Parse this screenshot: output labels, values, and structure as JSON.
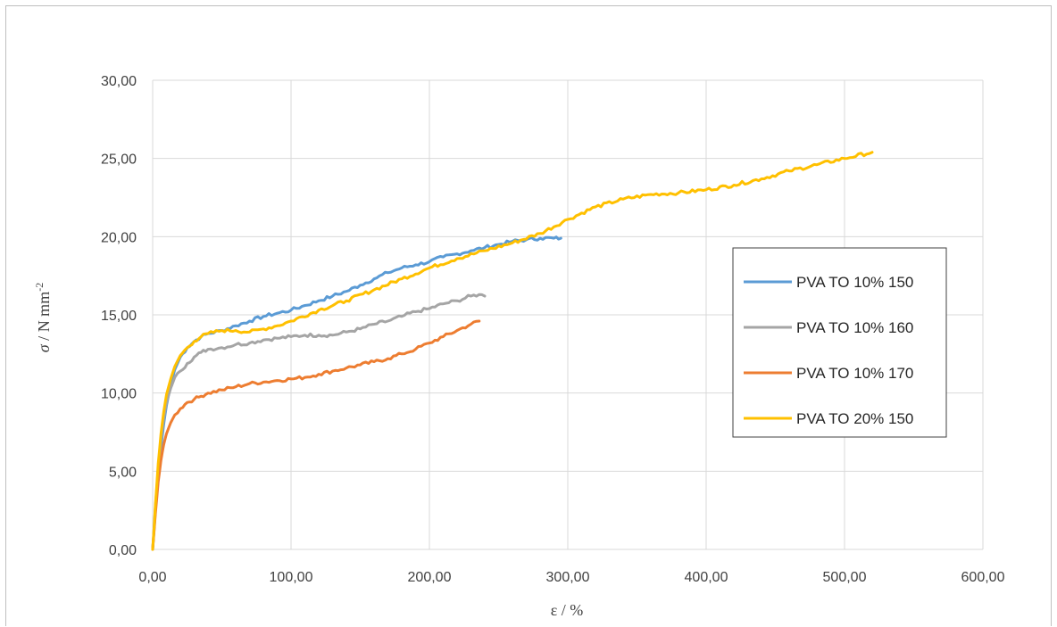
{
  "chart_data": {
    "type": "line",
    "title": "",
    "xlabel": "ε / %",
    "ylabel": "σ / N mm-2",
    "ylabel_parts": {
      "sigma": "σ",
      "unit": " / N mm",
      "exp": "-2"
    },
    "xlim": [
      0,
      600
    ],
    "ylim": [
      0,
      30
    ],
    "x_ticks": [
      0,
      100,
      200,
      300,
      400,
      500,
      600
    ],
    "y_ticks": [
      0,
      5,
      10,
      15,
      20,
      25,
      30
    ],
    "x_tick_labels": [
      "0,00",
      "100,00",
      "200,00",
      "300,00",
      "400,00",
      "500,00",
      "600,00"
    ],
    "y_tick_labels": [
      "0,00",
      "5,00",
      "10,00",
      "15,00",
      "20,00",
      "25,00",
      "30,00"
    ],
    "grid": true,
    "legend_position": "right",
    "series": [
      {
        "name": "PVA TO 10% 150",
        "color": "#5b9bd5",
        "x": [
          0,
          2,
          4,
          6,
          8,
          10,
          13,
          16,
          20,
          25,
          30,
          35,
          40,
          50,
          60,
          70,
          80,
          90,
          100,
          110,
          120,
          130,
          140,
          150,
          160,
          170,
          180,
          190,
          200,
          210,
          220,
          230,
          240,
          250,
          260,
          270,
          280,
          290,
          295
        ],
        "y": [
          0,
          2.5,
          4.8,
          6.5,
          8.0,
          9.2,
          10.5,
          11.5,
          12.3,
          12.9,
          13.3,
          13.6,
          13.8,
          14.0,
          14.3,
          14.6,
          14.9,
          15.1,
          15.3,
          15.6,
          15.9,
          16.2,
          16.5,
          16.9,
          17.3,
          17.7,
          18.0,
          18.2,
          18.4,
          18.7,
          18.9,
          19.1,
          19.3,
          19.5,
          19.7,
          19.8,
          19.9,
          19.9,
          19.9
        ]
      },
      {
        "name": "PVA TO 10% 160",
        "color": "#a5a5a5",
        "x": [
          0,
          2,
          4,
          6,
          8,
          10,
          13,
          16,
          20,
          25,
          30,
          35,
          40,
          50,
          60,
          70,
          80,
          90,
          100,
          110,
          120,
          130,
          140,
          150,
          160,
          170,
          180,
          190,
          200,
          210,
          220,
          230,
          236,
          240
        ],
        "y": [
          0,
          2.8,
          5.2,
          7.0,
          8.4,
          9.4,
          10.3,
          11.0,
          11.4,
          11.9,
          12.3,
          12.6,
          12.8,
          12.9,
          13.1,
          13.2,
          13.4,
          13.5,
          13.6,
          13.7,
          13.7,
          13.7,
          13.9,
          14.1,
          14.4,
          14.6,
          14.9,
          15.2,
          15.4,
          15.7,
          15.9,
          16.2,
          16.3,
          16.2
        ]
      },
      {
        "name": "PVA TO 10% 170",
        "color": "#ed7d31",
        "x": [
          0,
          2,
          4,
          6,
          8,
          10,
          13,
          16,
          20,
          25,
          30,
          35,
          40,
          50,
          60,
          70,
          80,
          90,
          100,
          110,
          120,
          130,
          140,
          150,
          160,
          170,
          180,
          190,
          200,
          210,
          220,
          230,
          236
        ],
        "y": [
          0,
          2.3,
          4.3,
          5.7,
          6.7,
          7.4,
          8.1,
          8.6,
          9.0,
          9.4,
          9.6,
          9.8,
          10.0,
          10.2,
          10.4,
          10.6,
          10.7,
          10.8,
          10.9,
          11.0,
          11.2,
          11.4,
          11.6,
          11.8,
          12.0,
          12.2,
          12.5,
          12.8,
          13.2,
          13.6,
          14.0,
          14.4,
          14.6
        ]
      },
      {
        "name": "PVA TO 20% 150",
        "color": "#ffc000",
        "x": [
          0,
          2,
          4,
          6,
          8,
          10,
          13,
          16,
          20,
          25,
          30,
          35,
          40,
          50,
          60,
          70,
          80,
          90,
          100,
          120,
          140,
          160,
          180,
          200,
          220,
          240,
          260,
          280,
          300,
          320,
          340,
          360,
          380,
          400,
          420,
          440,
          460,
          480,
          500,
          520
        ],
        "y": [
          0,
          2.9,
          5.5,
          7.4,
          8.8,
          9.9,
          10.9,
          11.7,
          12.4,
          12.9,
          13.3,
          13.6,
          13.8,
          14.0,
          14.0,
          13.9,
          14.1,
          14.3,
          14.6,
          15.3,
          15.9,
          16.6,
          17.3,
          18.0,
          18.6,
          19.1,
          19.6,
          20.2,
          21.1,
          21.9,
          22.4,
          22.7,
          22.8,
          23.0,
          23.3,
          23.7,
          24.2,
          24.6,
          25.0,
          25.4
        ]
      }
    ]
  }
}
